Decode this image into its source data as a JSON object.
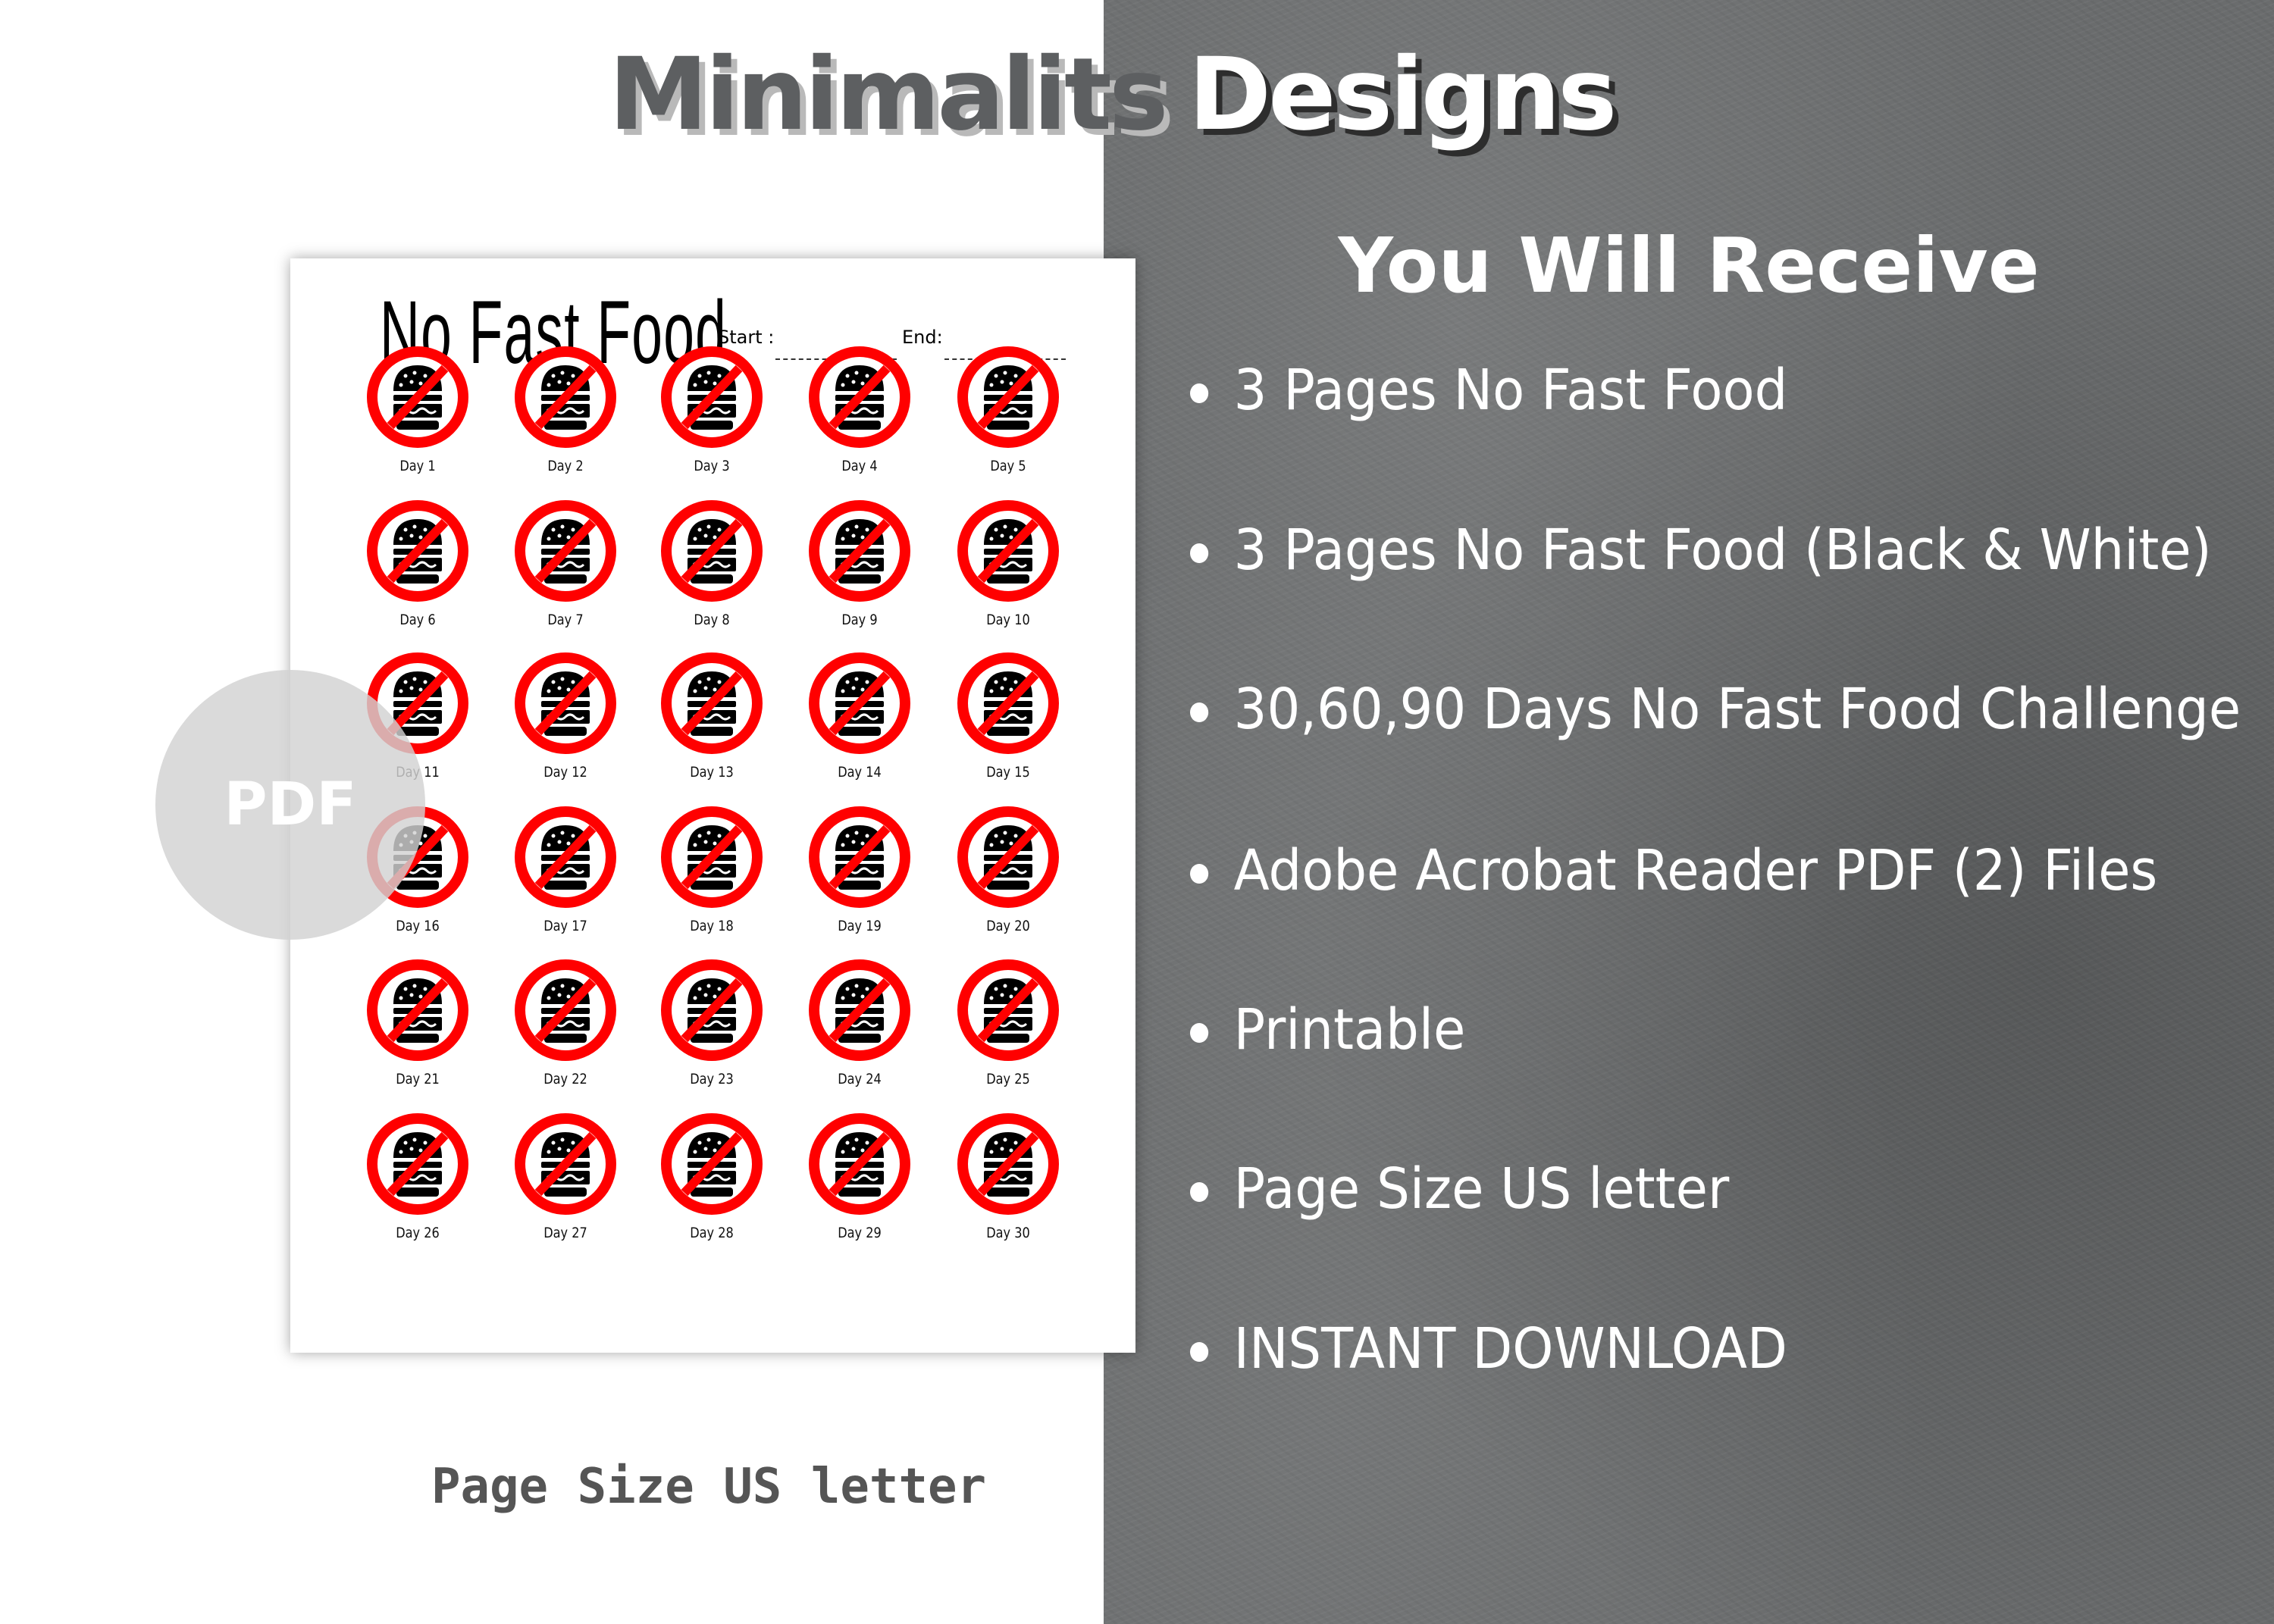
{
  "brand": {
    "word1": "Minimalits",
    "word2": "Designs"
  },
  "colors": {
    "accent_red": "#ff0000",
    "panel_gray": "#6a6c6d",
    "brand_gray": "#5d5f61"
  },
  "paper": {
    "title": "No Fast Food",
    "start_label": "Start :",
    "end_label": "End:",
    "icon": "no-burger-icon",
    "days": [
      "Day 1",
      "Day 2",
      "Day 3",
      "Day 4",
      "Day 5",
      "Day 6",
      "Day 7",
      "Day 8",
      "Day 9",
      "Day 10",
      "Day 11",
      "Day 12",
      "Day 13",
      "Day 14",
      "Day 15",
      "Day 16",
      "Day 17",
      "Day 18",
      "Day 19",
      "Day 20",
      "Day 21",
      "Day 22",
      "Day 23",
      "Day 24",
      "Day 25",
      "Day 26",
      "Day 27",
      "Day 28",
      "Day 29",
      "Day 30"
    ]
  },
  "badge": {
    "label": "PDF"
  },
  "receive": {
    "heading": "You Will Receive",
    "items": [
      "3 Pages No Fast Food",
      "3 Pages No Fast Food (Black & White)",
      "30,60,90 Days No Fast Food Challenge",
      "Adobe Acrobat Reader PDF (2) Files",
      "Printable",
      "Page Size US letter",
      "INSTANT DOWNLOAD"
    ]
  },
  "footer": {
    "page_size": "Page Size US letter"
  }
}
